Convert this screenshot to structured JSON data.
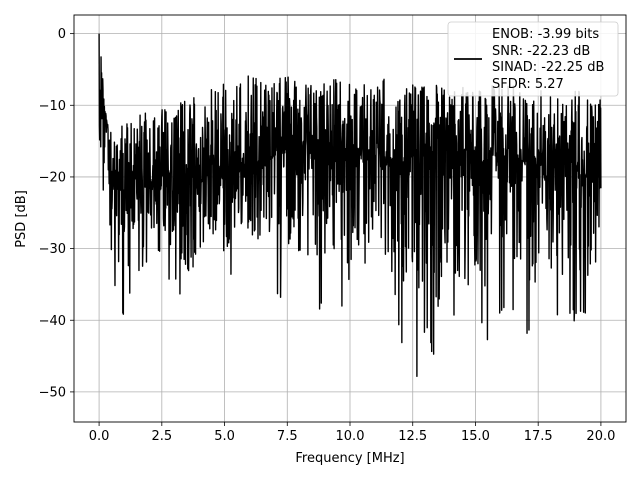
{
  "chart_data": {
    "type": "line",
    "title": "",
    "xlabel": "Frequency [MHz]",
    "ylabel": "PSD [dB]",
    "xlim": [
      -1.0,
      21.0
    ],
    "ylim": [
      -54.2,
      2.6
    ],
    "xticks": [
      0.0,
      2.5,
      5.0,
      7.5,
      10.0,
      12.5,
      15.0,
      17.5,
      20.0
    ],
    "xtick_labels": [
      "0.0",
      "2.5",
      "5.0",
      "7.5",
      "10.0",
      "12.5",
      "15.0",
      "17.5",
      "20.0"
    ],
    "yticks": [
      0,
      -10,
      -20,
      -30,
      -40,
      -50
    ],
    "ytick_labels": [
      "0",
      "−10",
      "−20",
      "−30",
      "−40",
      "−50"
    ],
    "grid": true,
    "legend_position": "top-right",
    "line_color": "#000000",
    "series": [
      {
        "name": "",
        "x": [
          0,
          0.5,
          1,
          1.5,
          2,
          2.5,
          3,
          3.5,
          4,
          4.5,
          5,
          5.5,
          6,
          6.5,
          7,
          7.5,
          8,
          8.5,
          9,
          9.5,
          10,
          10.5,
          11,
          11.5,
          12,
          12.5,
          13,
          13.5,
          14,
          14.5,
          15,
          15.5,
          16,
          16.5,
          17,
          17.5,
          18,
          18.5,
          19,
          19.5,
          20
        ],
        "y": [
          0,
          -20,
          -21,
          -20,
          -22,
          -21,
          -22,
          -20,
          -21,
          -19,
          -20,
          -19,
          -18,
          -18,
          -17,
          -16,
          -17,
          -16,
          -17,
          -17,
          -16,
          -16,
          -17,
          -17,
          -18,
          -17,
          -17,
          -16,
          -17,
          -16,
          -17,
          -17,
          -17,
          -17,
          -18,
          -18,
          -18,
          -19,
          -19,
          -20,
          -20
        ],
        "peaks": [
          -13,
          -12,
          -12,
          -11,
          -11,
          -10,
          -10,
          -9,
          -8,
          -7,
          -7,
          -6,
          -5.3,
          -6,
          -6,
          -6,
          -7,
          -7,
          -6,
          -6,
          -6,
          -7,
          -6,
          -6,
          -7,
          -7,
          -7,
          -7,
          -8,
          -7,
          -8,
          -7,
          -7,
          -7,
          -8,
          -7,
          -8,
          -9,
          -8,
          -8,
          -9
        ],
        "troughs": [
          -27,
          -35,
          -40,
          -35,
          -33,
          -36,
          -35,
          -42,
          -38,
          -32,
          -36,
          -32,
          -33,
          -36,
          -35,
          -43,
          -36,
          -41,
          -38,
          -37,
          -44,
          -33,
          -37,
          -31,
          -42,
          -51.5,
          -41,
          -48,
          -39,
          -46,
          -40,
          -44,
          -39,
          -40,
          -42,
          -44,
          -39,
          -42,
          -40,
          -41,
          -28
        ]
      }
    ],
    "legend_entries": [
      "ENOB: -3.99 bits",
      "SNR: -22.23 dB",
      "SINAD: -22.25 dB",
      "SFDR: 5.27"
    ]
  }
}
